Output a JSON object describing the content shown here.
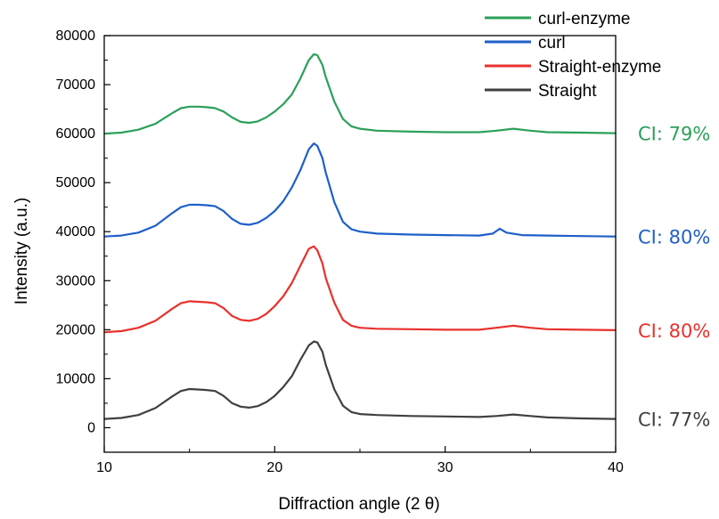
{
  "chart_data": {
    "type": "line",
    "title": "",
    "xlabel": "Diffraction angle (2 θ)",
    "ylabel": "Intensity (a.u.)",
    "xlim": [
      10,
      40
    ],
    "ylim": [
      -5000,
      80000
    ],
    "x_ticks": [
      10,
      20,
      30,
      40
    ],
    "x_tick_labels": [
      "10",
      "20",
      "30",
      "40"
    ],
    "y_ticks": [
      0,
      10000,
      20000,
      30000,
      40000,
      50000,
      60000,
      70000,
      80000
    ],
    "y_tick_labels": [
      "0",
      "10000",
      "20000",
      "30000",
      "40000",
      "50000",
      "60000",
      "70000",
      "80000"
    ],
    "grid": false,
    "legend_position": "top-right",
    "legend": [
      "curl-enzyme",
      "curl",
      "Straight-enzyme",
      "Straight"
    ],
    "series": [
      {
        "name": "curl-enzyme",
        "color": "#2ca05a",
        "annotation": "CI: 79%",
        "x": [
          10,
          11,
          12,
          13,
          14,
          14.5,
          15,
          15.5,
          16,
          16.5,
          17,
          17.5,
          18,
          18.5,
          19,
          19.5,
          20,
          20.5,
          21,
          21.5,
          22,
          22.3,
          22.5,
          22.8,
          23,
          23.5,
          24,
          24.5,
          25,
          26,
          28,
          30,
          32,
          33,
          34,
          35,
          36,
          38,
          40
        ],
        "values": [
          60000,
          60200,
          60800,
          62000,
          64200,
          65200,
          65500,
          65500,
          65400,
          65200,
          64500,
          63300,
          62400,
          62200,
          62500,
          63300,
          64500,
          66000,
          68000,
          71200,
          75000,
          76200,
          76000,
          74000,
          71500,
          66500,
          63000,
          61500,
          61000,
          60600,
          60400,
          60300,
          60300,
          60600,
          61000,
          60600,
          60300,
          60200,
          60100
        ]
      },
      {
        "name": "curl",
        "color": "#1f5fc8",
        "annotation": "CI: 80%",
        "x": [
          10,
          11,
          12,
          13,
          14,
          14.5,
          15,
          15.5,
          16,
          16.5,
          17,
          17.5,
          18,
          18.5,
          19,
          19.5,
          20,
          20.5,
          21,
          21.5,
          22,
          22.3,
          22.5,
          22.8,
          23,
          23.5,
          24,
          24.5,
          25,
          26,
          28,
          30,
          32,
          32.8,
          33.2,
          33.6,
          34.5,
          36,
          38,
          40
        ],
        "values": [
          39000,
          39200,
          39800,
          41200,
          43800,
          45000,
          45500,
          45500,
          45400,
          45200,
          44200,
          42600,
          41600,
          41400,
          41800,
          42800,
          44200,
          46200,
          49000,
          52500,
          56800,
          58000,
          57500,
          55000,
          52000,
          46000,
          42000,
          40500,
          40000,
          39600,
          39400,
          39300,
          39200,
          39600,
          40600,
          39800,
          39300,
          39200,
          39100,
          39000
        ]
      },
      {
        "name": "Straight-enzyme",
        "color": "#e8312c",
        "annotation": "CI: 80%",
        "x": [
          10,
          11,
          12,
          13,
          14,
          14.5,
          15,
          15.5,
          16,
          16.5,
          17,
          17.5,
          18,
          18.5,
          19,
          19.5,
          20,
          20.5,
          21,
          21.5,
          22,
          22.3,
          22.5,
          22.8,
          23,
          23.5,
          24,
          24.5,
          25,
          26,
          28,
          30,
          32,
          33,
          34,
          35,
          36,
          38,
          40
        ],
        "values": [
          19500,
          19700,
          20400,
          21800,
          24300,
          25400,
          25800,
          25700,
          25600,
          25400,
          24400,
          22800,
          22000,
          21800,
          22200,
          23200,
          24800,
          26800,
          29500,
          33000,
          36500,
          37000,
          36200,
          33500,
          30500,
          25500,
          22000,
          20800,
          20400,
          20200,
          20100,
          20000,
          20000,
          20400,
          20800,
          20400,
          20100,
          20000,
          19900
        ]
      },
      {
        "name": "Straight",
        "color": "#404040",
        "annotation": "CI: 77%",
        "x": [
          10,
          11,
          12,
          13,
          14,
          14.5,
          15,
          15.5,
          16,
          16.5,
          17,
          17.5,
          18,
          18.5,
          19,
          19.5,
          20,
          20.5,
          21,
          21.5,
          22,
          22.3,
          22.5,
          22.8,
          23,
          23.5,
          24,
          24.5,
          25,
          26,
          28,
          30,
          32,
          33,
          34,
          35,
          36,
          38,
          40
        ],
        "values": [
          1800,
          2000,
          2600,
          4000,
          6400,
          7500,
          7900,
          7800,
          7700,
          7500,
          6500,
          5000,
          4300,
          4100,
          4400,
          5200,
          6500,
          8300,
          10500,
          13800,
          16800,
          17600,
          17400,
          15500,
          12800,
          7800,
          4500,
          3200,
          2800,
          2600,
          2400,
          2300,
          2200,
          2400,
          2700,
          2400,
          2100,
          1900,
          1800
        ]
      }
    ]
  }
}
